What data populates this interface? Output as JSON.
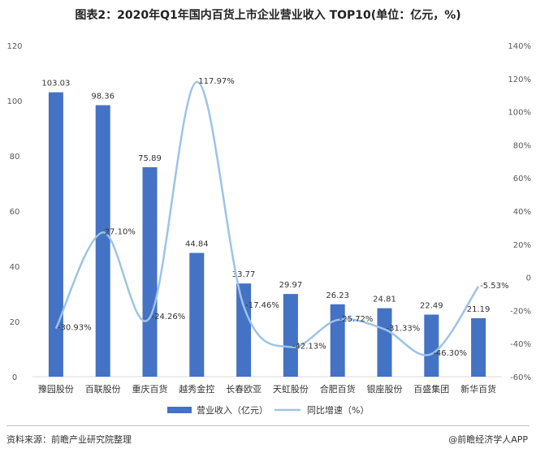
{
  "title": "图表2：2020年Q1年国内百货上市企业营业收入 TOP10(单位：亿元，%)",
  "source": "资料来源：前瞻产业研究院整理",
  "brand": "@前瞻经济学人APP",
  "colors": {
    "bar": "#4472C4",
    "line": "#9DC3E6",
    "axis_text": "#595959"
  },
  "chart_data": {
    "type": "bar",
    "categories": [
      "豫园股份",
      "百联股份",
      "重庆百货",
      "越秀金控",
      "长春欧亚",
      "天虹股份",
      "合肥百货",
      "银座股份",
      "百盛集团",
      "新华百货"
    ],
    "series": [
      {
        "name": "营业收入（亿元）",
        "type": "bar",
        "axis": "left",
        "values": [
          103.03,
          98.36,
          75.89,
          44.84,
          33.77,
          29.97,
          26.23,
          24.81,
          22.49,
          21.19
        ],
        "labels": [
          "103.03",
          "98.36",
          "75.89",
          "44.84",
          "33.77",
          "29.97",
          "26.23",
          "24.81",
          "22.49",
          "21.19"
        ]
      },
      {
        "name": "同比增速（%）",
        "type": "line",
        "smooth": true,
        "axis": "right",
        "values": [
          -30.93,
          27.1,
          -24.26,
          117.97,
          -17.46,
          -42.13,
          -25.72,
          -31.33,
          -46.3,
          -5.53
        ],
        "labels": [
          "-30.93%",
          "27.10%",
          "-24.26%",
          "117.97%",
          "-17.46%",
          "-42.13%",
          "-25.72%",
          "-31.33%",
          "-46.30%",
          "-5.53%"
        ]
      }
    ],
    "ylim_left": [
      0,
      120
    ],
    "yticks_left": [
      "0",
      "20",
      "40",
      "60",
      "80",
      "100",
      "120"
    ],
    "ylim_right": [
      -60,
      140
    ],
    "yticks_right": [
      "-60%",
      "-40%",
      "-20%",
      "0",
      "20%",
      "40%",
      "60%",
      "80%",
      "100%",
      "120%",
      "140%"
    ],
    "grid": false,
    "legend_position": "bottom"
  }
}
